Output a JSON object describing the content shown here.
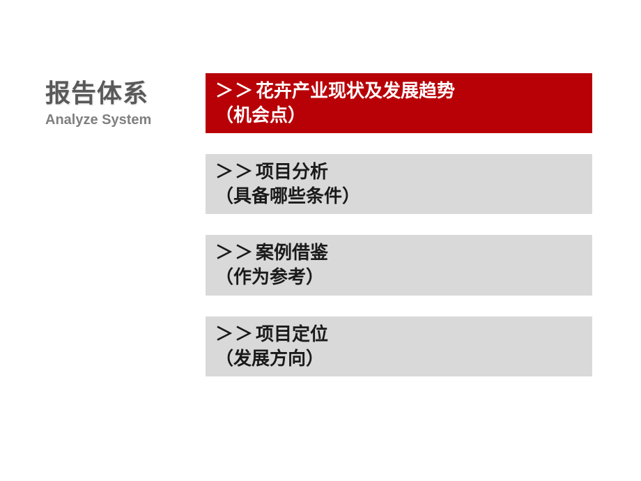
{
  "sidebar": {
    "title_cn": "报告体系",
    "title_en": "Analyze System"
  },
  "items": [
    {
      "prefix": "＞＞",
      "line1": "花卉产业现状及发展趋势",
      "line2": "（机会点）",
      "active": true
    },
    {
      "prefix": "＞＞",
      "line1": "项目分析",
      "line2": "（具备哪些条件）",
      "active": false
    },
    {
      "prefix": "＞＞",
      "line1": "案例借鉴",
      "line2": "（作为参考）",
      "active": false
    },
    {
      "prefix": "＞＞",
      "line1": "项目定位",
      "line2": "（发展方向）",
      "active": false
    }
  ],
  "colors": {
    "active_bg": "#b80007",
    "active_text": "#ffffff",
    "inactive_bg": "#d9d9d9",
    "inactive_text": "#1a1a1a",
    "sidebar_title": "#595959",
    "sidebar_subtitle": "#7f7f7f",
    "background": "#ffffff"
  },
  "typography": {
    "title_cn_fontsize": 36,
    "title_en_fontsize": 20,
    "item_fontsize": 26
  }
}
